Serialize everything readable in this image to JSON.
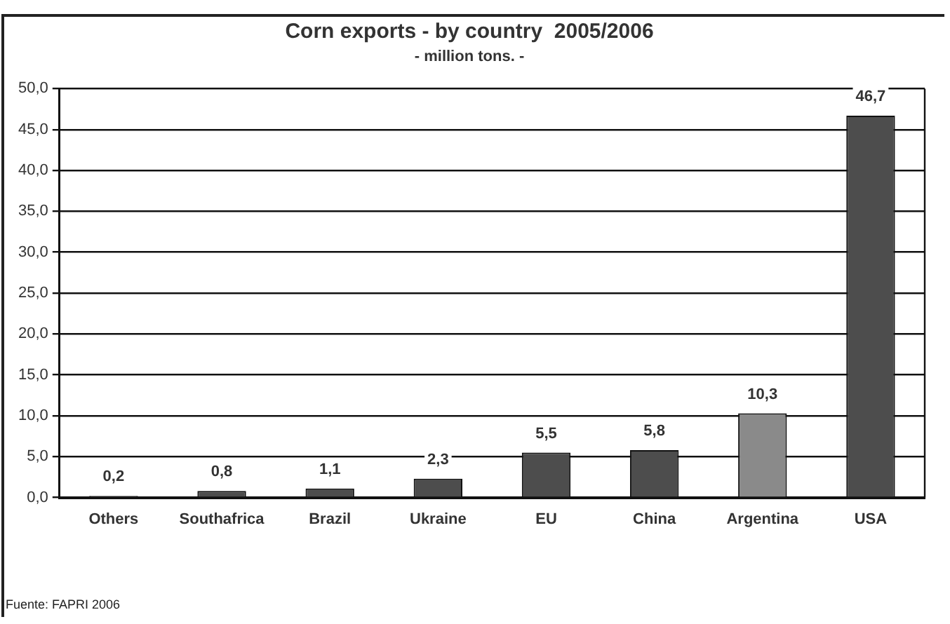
{
  "chart_data": {
    "type": "bar",
    "title": "Corn exports - by country  2005/2006",
    "subtitle": "- million tons. -",
    "categories": [
      "Others",
      "Southafrica",
      "Brazil",
      "Ukraine",
      "EU",
      "China",
      "Argentina",
      "USA"
    ],
    "values": [
      0.2,
      0.8,
      1.1,
      2.3,
      5.5,
      5.8,
      10.3,
      46.7
    ],
    "value_labels": [
      "0,2",
      "0,8",
      "1,1",
      "2,3",
      "5,5",
      "5,8",
      "10,3",
      "46,7"
    ],
    "colors": [
      "#4d4d4d",
      "#4d4d4d",
      "#4d4d4d",
      "#4d4d4d",
      "#4d4d4d",
      "#4d4d4d",
      "#8a8a8a",
      "#4d4d4d"
    ],
    "ylim": [
      0,
      50
    ],
    "yticks": [
      {
        "value": 0,
        "label": "0,0"
      },
      {
        "value": 5,
        "label": "5,0"
      },
      {
        "value": 10,
        "label": "10,0"
      },
      {
        "value": 15,
        "label": "15,0"
      },
      {
        "value": 20,
        "label": "20,0"
      },
      {
        "value": 25,
        "label": "25,0"
      },
      {
        "value": 30,
        "label": "30,0"
      },
      {
        "value": 35,
        "label": "35,0"
      },
      {
        "value": 40,
        "label": "40,0"
      },
      {
        "value": 45,
        "label": "45,0"
      },
      {
        "value": 50,
        "label": "50,0"
      }
    ],
    "grid": "y",
    "legend": false,
    "annotations": [
      "Fuente: FAPRI 2006"
    ]
  }
}
